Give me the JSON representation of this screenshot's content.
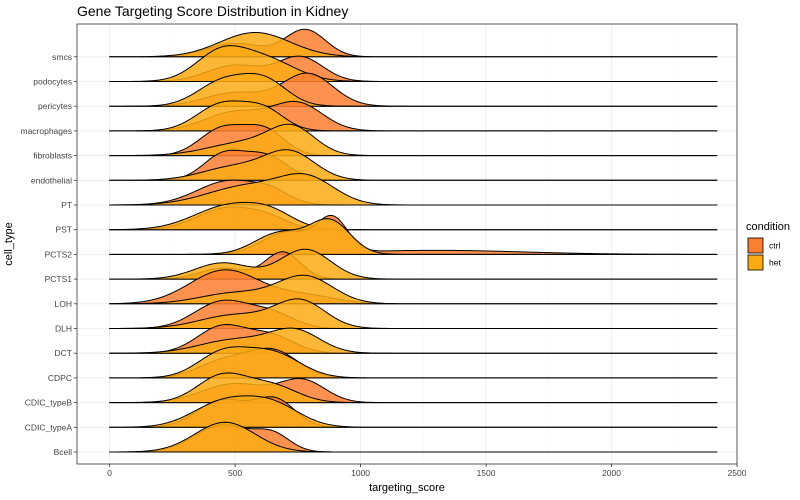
{
  "chart_data": {
    "type": "ridgeline",
    "title": "Gene Targeting Score Distribution in Kidney",
    "xlabel": "targeting_score",
    "ylabel": "cell_type",
    "xlim": [
      -130,
      2500
    ],
    "xticks": [
      0,
      500,
      1000,
      1500,
      2000,
      2500
    ],
    "x_range_of_densities": [
      0,
      2420
    ],
    "grid": true,
    "legend": {
      "title": "condition",
      "placement": "right",
      "entries": [
        {
          "label": "ctrl",
          "color": "#fc7e31"
        },
        {
          "label": "het",
          "color": "#fcaa14"
        }
      ]
    },
    "categories": [
      "Bcell",
      "CDIC_typeA",
      "CDIC_typeB",
      "CDPC",
      "DCT",
      "DLH",
      "LOH",
      "PCTS1",
      "PCTS2",
      "PST",
      "PT",
      "endothelial",
      "fibroblasts",
      "macrophages",
      "pericytes",
      "podocytes",
      "smcs"
    ],
    "series": [
      {
        "name": "ctrl",
        "color": "#fc7e31",
        "ridges": [
          {
            "cell_type": "Bcell",
            "peaks": [
              {
                "x": 450,
                "sd": 110,
                "h": 1.0
              },
              {
                "x": 650,
                "sd": 70,
                "h": 0.6
              }
            ]
          },
          {
            "cell_type": "CDIC_typeA",
            "peaks": [
              {
                "x": 450,
                "sd": 100,
                "h": 1.0
              },
              {
                "x": 660,
                "sd": 80,
                "h": 1.0
              }
            ]
          },
          {
            "cell_type": "CDIC_typeB",
            "peaks": [
              {
                "x": 500,
                "sd": 130,
                "h": 0.7
              },
              {
                "x": 770,
                "sd": 90,
                "h": 0.8
              }
            ]
          },
          {
            "cell_type": "CDPC",
            "peaks": [
              {
                "x": 450,
                "sd": 100,
                "h": 0.6
              },
              {
                "x": 650,
                "sd": 100,
                "h": 1.0
              }
            ]
          },
          {
            "cell_type": "DCT",
            "peaks": [
              {
                "x": 450,
                "sd": 100,
                "h": 1.0
              },
              {
                "x": 650,
                "sd": 90,
                "h": 0.6
              }
            ]
          },
          {
            "cell_type": "DLH",
            "peaks": [
              {
                "x": 450,
                "sd": 110,
                "h": 1.0
              },
              {
                "x": 650,
                "sd": 90,
                "h": 0.5
              }
            ]
          },
          {
            "cell_type": "LOH",
            "peaks": [
              {
                "x": 460,
                "sd": 140,
                "h": 1.25
              },
              {
                "x": 780,
                "sd": 120,
                "h": 0.3
              }
            ]
          },
          {
            "cell_type": "PCTS1",
            "peaks": [
              {
                "x": 450,
                "sd": 90,
                "h": 0.4
              },
              {
                "x": 690,
                "sd": 70,
                "h": 1.0
              }
            ]
          },
          {
            "cell_type": "PCTS2",
            "peaks": [
              {
                "x": 710,
                "sd": 100,
                "h": 0.8
              },
              {
                "x": 890,
                "sd": 60,
                "h": 1.2
              },
              {
                "x": 1300,
                "sd": 350,
                "h": 0.15
              }
            ]
          },
          {
            "cell_type": "PST",
            "peaks": [
              {
                "x": 470,
                "sd": 120,
                "h": 0.8
              },
              {
                "x": 640,
                "sd": 80,
                "h": 0.3
              }
            ]
          },
          {
            "cell_type": "PT",
            "peaks": [
              {
                "x": 480,
                "sd": 130,
                "h": 0.9
              },
              {
                "x": 650,
                "sd": 70,
                "h": 0.3
              }
            ]
          },
          {
            "cell_type": "endothelial",
            "peaks": [
              {
                "x": 450,
                "sd": 80,
                "h": 0.9
              },
              {
                "x": 620,
                "sd": 90,
                "h": 0.9
              }
            ]
          },
          {
            "cell_type": "fibroblasts",
            "peaks": [
              {
                "x": 450,
                "sd": 90,
                "h": 1.0
              },
              {
                "x": 620,
                "sd": 80,
                "h": 0.9
              }
            ]
          },
          {
            "cell_type": "macrophages",
            "peaks": [
              {
                "x": 500,
                "sd": 120,
                "h": 0.7
              },
              {
                "x": 750,
                "sd": 100,
                "h": 1.0
              }
            ]
          },
          {
            "cell_type": "pericytes",
            "peaks": [
              {
                "x": 500,
                "sd": 120,
                "h": 0.5
              },
              {
                "x": 790,
                "sd": 100,
                "h": 1.2
              }
            ]
          },
          {
            "cell_type": "podocytes",
            "peaks": [
              {
                "x": 500,
                "sd": 110,
                "h": 0.6
              },
              {
                "x": 760,
                "sd": 90,
                "h": 0.9
              }
            ]
          },
          {
            "cell_type": "smcs",
            "peaks": [
              {
                "x": 500,
                "sd": 110,
                "h": 0.5
              },
              {
                "x": 780,
                "sd": 80,
                "h": 1.0
              }
            ]
          }
        ]
      },
      {
        "name": "het",
        "color": "#fcaa14",
        "ridges": [
          {
            "cell_type": "Bcell",
            "peaks": [
              {
                "x": 460,
                "sd": 120,
                "h": 1.1
              }
            ]
          },
          {
            "cell_type": "CDIC_typeA",
            "peaks": [
              {
                "x": 450,
                "sd": 120,
                "h": 0.9
              },
              {
                "x": 650,
                "sd": 110,
                "h": 0.8
              }
            ]
          },
          {
            "cell_type": "CDIC_typeB",
            "peaks": [
              {
                "x": 450,
                "sd": 100,
                "h": 1.0
              },
              {
                "x": 650,
                "sd": 100,
                "h": 0.6
              }
            ]
          },
          {
            "cell_type": "CDPC",
            "peaks": [
              {
                "x": 450,
                "sd": 100,
                "h": 0.9
              },
              {
                "x": 650,
                "sd": 110,
                "h": 0.9
              }
            ]
          },
          {
            "cell_type": "DCT",
            "peaks": [
              {
                "x": 500,
                "sd": 140,
                "h": 0.5
              },
              {
                "x": 740,
                "sd": 100,
                "h": 0.8
              }
            ]
          },
          {
            "cell_type": "DLH",
            "peaks": [
              {
                "x": 500,
                "sd": 140,
                "h": 0.5
              },
              {
                "x": 760,
                "sd": 100,
                "h": 1.0
              }
            ]
          },
          {
            "cell_type": "LOH",
            "peaks": [
              {
                "x": 500,
                "sd": 140,
                "h": 0.4
              },
              {
                "x": 780,
                "sd": 110,
                "h": 1.0
              }
            ]
          },
          {
            "cell_type": "PCTS1",
            "peaks": [
              {
                "x": 450,
                "sd": 110,
                "h": 0.6
              },
              {
                "x": 780,
                "sd": 100,
                "h": 1.1
              }
            ]
          },
          {
            "cell_type": "PCTS2",
            "peaks": [
              {
                "x": 680,
                "sd": 100,
                "h": 0.8
              },
              {
                "x": 880,
                "sd": 80,
                "h": 1.2
              }
            ]
          },
          {
            "cell_type": "PST",
            "peaks": [
              {
                "x": 480,
                "sd": 140,
                "h": 0.9
              },
              {
                "x": 650,
                "sd": 90,
                "h": 0.4
              }
            ]
          },
          {
            "cell_type": "PT",
            "peaks": [
              {
                "x": 550,
                "sd": 160,
                "h": 0.7
              },
              {
                "x": 790,
                "sd": 110,
                "h": 0.9
              }
            ]
          },
          {
            "cell_type": "endothelial",
            "peaks": [
              {
                "x": 500,
                "sd": 130,
                "h": 0.5
              },
              {
                "x": 720,
                "sd": 100,
                "h": 1.0
              }
            ]
          },
          {
            "cell_type": "fibroblasts",
            "peaks": [
              {
                "x": 550,
                "sd": 150,
                "h": 0.5
              },
              {
                "x": 730,
                "sd": 90,
                "h": 0.9
              }
            ]
          },
          {
            "cell_type": "macrophages",
            "peaks": [
              {
                "x": 450,
                "sd": 100,
                "h": 1.0
              },
              {
                "x": 620,
                "sd": 80,
                "h": 0.7
              }
            ]
          },
          {
            "cell_type": "pericytes",
            "peaks": [
              {
                "x": 450,
                "sd": 100,
                "h": 0.9
              },
              {
                "x": 620,
                "sd": 90,
                "h": 0.9
              }
            ]
          },
          {
            "cell_type": "podocytes",
            "peaks": [
              {
                "x": 440,
                "sd": 100,
                "h": 1.0
              },
              {
                "x": 620,
                "sd": 120,
                "h": 0.8
              }
            ]
          },
          {
            "cell_type": "smcs",
            "peaks": [
              {
                "x": 580,
                "sd": 140,
                "h": 0.9
              }
            ]
          }
        ]
      }
    ]
  }
}
